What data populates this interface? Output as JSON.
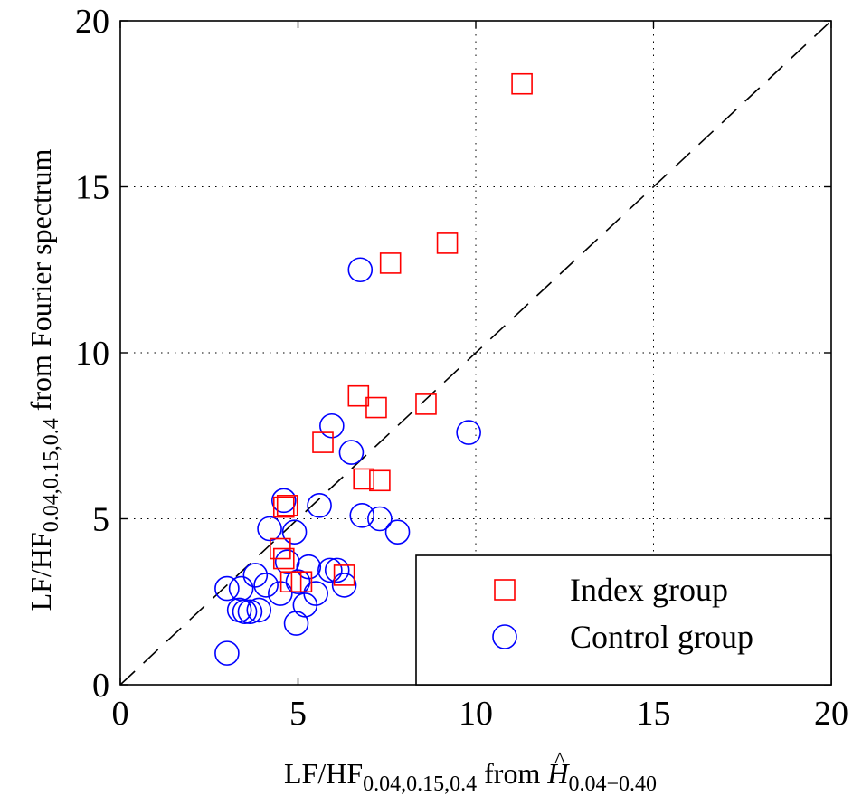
{
  "chart_data": {
    "type": "scatter",
    "xlim": [
      0,
      20
    ],
    "ylim": [
      0,
      20
    ],
    "xticks": [
      0,
      5,
      10,
      15,
      20
    ],
    "yticks": [
      0,
      5,
      10,
      15,
      20
    ],
    "grid": true,
    "legend_position": "bottom-right",
    "xlabel": {
      "main": "LF/HF",
      "sub": "0.04,0.15,0.4",
      "from": " from ",
      "sym": "H",
      "sym_sub": "0.04−0.40"
    },
    "ylabel": {
      "main": "LF/HF",
      "sub": "0.04,0.15,0.4",
      "rest": " from Fourier spectrum"
    },
    "reference_line": {
      "style": "dashed",
      "from": [
        0,
        0
      ],
      "to": [
        20,
        20
      ]
    },
    "series": [
      {
        "name": "Index group",
        "marker": "square",
        "color": "#ff0000",
        "points": [
          [
            11.3,
            18.1
          ],
          [
            9.2,
            13.3
          ],
          [
            7.6,
            12.7
          ],
          [
            6.7,
            8.7
          ],
          [
            7.2,
            8.35
          ],
          [
            8.6,
            8.45
          ],
          [
            5.7,
            7.3
          ],
          [
            6.85,
            6.2
          ],
          [
            7.3,
            6.15
          ],
          [
            4.7,
            5.4
          ],
          [
            4.6,
            5.35
          ],
          [
            4.5,
            4.1
          ],
          [
            4.6,
            3.8
          ],
          [
            4.8,
            3.1
          ],
          [
            5.1,
            3.1
          ],
          [
            6.3,
            3.3
          ]
        ]
      },
      {
        "name": "Control group",
        "marker": "circle",
        "color": "#0000ff",
        "points": [
          [
            6.75,
            12.5
          ],
          [
            5.95,
            7.8
          ],
          [
            9.8,
            7.6
          ],
          [
            6.5,
            7.0
          ],
          [
            4.6,
            5.55
          ],
          [
            5.6,
            5.4
          ],
          [
            6.8,
            5.1
          ],
          [
            7.3,
            5.0
          ],
          [
            4.2,
            4.7
          ],
          [
            4.9,
            4.6
          ],
          [
            7.8,
            4.6
          ],
          [
            4.7,
            3.7
          ],
          [
            5.3,
            3.55
          ],
          [
            5.9,
            3.45
          ],
          [
            6.1,
            3.45
          ],
          [
            3.8,
            3.3
          ],
          [
            5.0,
            3.1
          ],
          [
            3.0,
            2.9
          ],
          [
            3.4,
            2.9
          ],
          [
            4.1,
            3.0
          ],
          [
            4.5,
            2.75
          ],
          [
            5.5,
            2.75
          ],
          [
            6.3,
            3.0
          ],
          [
            5.2,
            2.4
          ],
          [
            3.5,
            2.2
          ],
          [
            3.65,
            2.2
          ],
          [
            3.9,
            2.25
          ],
          [
            3.35,
            2.25
          ],
          [
            4.95,
            1.85
          ],
          [
            3.0,
            0.95
          ]
        ]
      }
    ]
  }
}
